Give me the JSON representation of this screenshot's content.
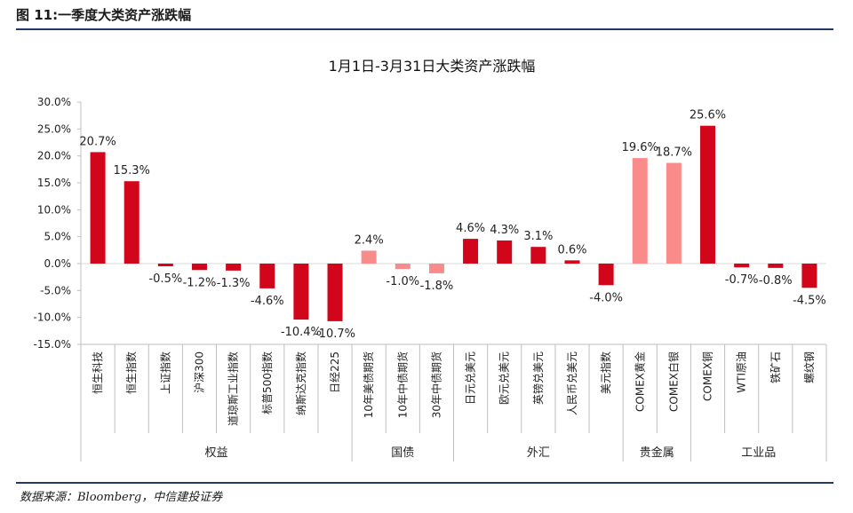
{
  "figure": {
    "title": "图 11:一季度大类资产涨跌幅",
    "source": "数据来源：Bloomberg，中信建投证券"
  },
  "colors": {
    "dark": "#d1061b",
    "light": "#f98b8b"
  },
  "chart_data": {
    "type": "bar",
    "title": "1月1日-3月31日大类资产涨跌幅",
    "xlabel": "",
    "ylabel": "",
    "ylim": [
      -15,
      30
    ],
    "yticks": [
      -15,
      -10,
      -5,
      0,
      5,
      10,
      15,
      20,
      25,
      30
    ],
    "ytick_labels": [
      "-15.0%",
      "-10.0%",
      "-5.0%",
      "0.0%",
      "5.0%",
      "10.0%",
      "15.0%",
      "20.0%",
      "25.0%",
      "30.0%"
    ],
    "categories": [
      "恒生科技",
      "恒生指数",
      "上证指数",
      "沪深300",
      "道琼斯工业指数",
      "标普500指数",
      "纳斯达克指数",
      "日经225",
      "10年美债期货",
      "10年中债期货",
      "30年中债期货",
      "日元兑美元",
      "欧元兑美元",
      "英镑兑美元",
      "人民币兑美元",
      "美元指数",
      "COMEX黄金",
      "COMEX白银",
      "COMEX铜",
      "WTI原油",
      "铁矿石",
      "螺纹钢"
    ],
    "values": [
      20.7,
      15.3,
      -0.5,
      -1.2,
      -1.3,
      -4.6,
      -10.4,
      -10.7,
      2.4,
      -1.0,
      -1.8,
      4.6,
      4.3,
      3.1,
      0.6,
      -4.0,
      19.6,
      18.7,
      25.6,
      -0.7,
      -0.8,
      -4.5
    ],
    "value_labels": [
      "20.7%",
      "15.3%",
      "-0.5%",
      "-1.2%",
      "-1.3%",
      "-4.6%",
      "-10.4%",
      "-10.7%",
      "2.4%",
      "-1.0%",
      "-1.8%",
      "4.6%",
      "4.3%",
      "3.1%",
      "0.6%",
      "-4.0%",
      "19.6%",
      "18.7%",
      "25.6%",
      "-0.7%",
      "-0.8%",
      "-4.5%"
    ],
    "bar_color": [
      "dark",
      "dark",
      "dark",
      "dark",
      "dark",
      "dark",
      "dark",
      "dark",
      "light",
      "light",
      "light",
      "dark",
      "dark",
      "dark",
      "dark",
      "dark",
      "light",
      "light",
      "dark",
      "dark",
      "dark",
      "dark"
    ],
    "groups": [
      {
        "label": "权益",
        "start": 0,
        "end": 7
      },
      {
        "label": "国债",
        "start": 8,
        "end": 10
      },
      {
        "label": "外汇",
        "start": 11,
        "end": 15
      },
      {
        "label": "贵金属",
        "start": 16,
        "end": 17
      },
      {
        "label": "工业品",
        "start": 18,
        "end": 21
      }
    ]
  }
}
